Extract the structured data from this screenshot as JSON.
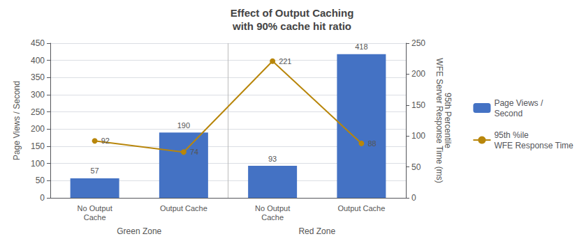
{
  "chart_data": {
    "type": "bar",
    "title": "Effect of Output Caching\nwith 90% cache hit ratio",
    "categories": [
      "No Output\nCache",
      "Output Cache",
      "No Output\nCache",
      "Output Cache"
    ],
    "series": [
      {
        "name": "Page Views /\nSecond",
        "type": "bar",
        "color": "#4472C4",
        "values": [
          57,
          190,
          93,
          418
        ]
      },
      {
        "name": "95th %ile\nWFE Response Time",
        "type": "line",
        "color": "#B8860B",
        "marker": "circle",
        "axis": "y2",
        "values": [
          92,
          74,
          221,
          88
        ]
      }
    ],
    "ylabel": "Page Views / Second",
    "y2label": "95th Percentile\nWFE Server Response Time (ms)",
    "ylim": [
      0,
      450
    ],
    "yticks": [
      0,
      50,
      100,
      150,
      200,
      250,
      300,
      350,
      400,
      450
    ],
    "y2lim": [
      0,
      250
    ],
    "y2ticks": [
      0,
      50,
      100,
      150,
      200,
      250
    ],
    "annotations": [
      "Green Zone",
      "Red Zone"
    ],
    "grid": true,
    "legend": "right",
    "data_labels": true
  }
}
